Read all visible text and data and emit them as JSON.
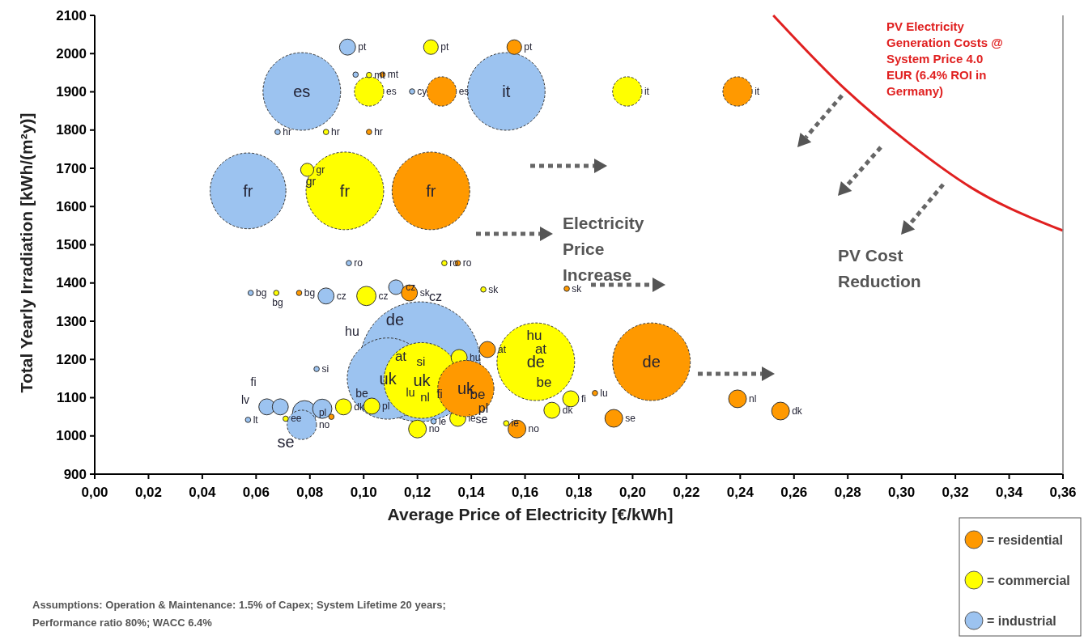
{
  "chart_data": {
    "type": "bubble",
    "xlabel": "Average Price of Electricity [€/kWh]",
    "ylabel": "Total Yearly Irradiation [kWh/(m²y)]",
    "xlim": [
      0,
      0.36
    ],
    "ylim": [
      900,
      2100
    ],
    "xticks": [
      {
        "value": 0,
        "label": "0,00"
      },
      {
        "value": 0.02,
        "label": "0,02"
      },
      {
        "value": 0.04,
        "label": "0,04"
      },
      {
        "value": 0.06,
        "label": "0,06"
      },
      {
        "value": 0.08,
        "label": "0,08"
      },
      {
        "value": 0.1,
        "label": "0,10"
      },
      {
        "value": 0.12,
        "label": "0,12"
      },
      {
        "value": 0.14,
        "label": "0,14"
      },
      {
        "value": 0.16,
        "label": "0,16"
      },
      {
        "value": 0.18,
        "label": "0,18"
      },
      {
        "value": 0.2,
        "label": "0,20"
      },
      {
        "value": 0.22,
        "label": "0,22"
      },
      {
        "value": 0.24,
        "label": "0,24"
      },
      {
        "value": 0.26,
        "label": "0,26"
      },
      {
        "value": 0.28,
        "label": "0,28"
      },
      {
        "value": 0.3,
        "label": "0,30"
      },
      {
        "value": 0.32,
        "label": "0,32"
      },
      {
        "value": 0.34,
        "label": "0,34"
      },
      {
        "value": 0.36,
        "label": "0,36"
      }
    ],
    "yticks": [
      900,
      1000,
      1100,
      1200,
      1300,
      1400,
      1500,
      1600,
      1700,
      1800,
      1900,
      2000,
      2100
    ],
    "grid": false,
    "legend": "bottom right",
    "marker": "circle",
    "series": [
      {
        "name": "= residential",
        "color": "#ff9900",
        "x": [
          0.125,
          0.207,
          0.138,
          0.129,
          0.239,
          0.156,
          0.117,
          0.146,
          0.157,
          0.193,
          0.239,
          0.255,
          0.107,
          0.102,
          0.135,
          0.076,
          0.1755,
          0.186,
          0.088
        ],
        "values": [
          1641,
          1194,
          1124,
          1901,
          1901,
          2017,
          1374,
          1226,
          1018,
          1046,
          1097,
          1065,
          1945,
          1795,
          1452,
          1374,
          1385,
          1112,
          1050
        ],
        "sizes": [
          0.42,
          0.42,
          0.22,
          0.06,
          0.06,
          0.015,
          0.018,
          0.018,
          0.022,
          0.022,
          0.022,
          0.022,
          0.002,
          0.002,
          0.002,
          0.002,
          0.002,
          0.002,
          0.002
        ]
      },
      {
        "name": "= commercial",
        "color": "#ffff00",
        "x": [
          0.093,
          0.164,
          0.1216,
          0.102,
          0.198,
          0.125,
          0.101,
          0.079,
          0.1355,
          0.103,
          0.0925,
          0.12,
          0.135,
          0.17,
          0.177,
          0.102,
          0.086,
          0.13,
          0.0675,
          0.1445,
          0.153,
          0.071
        ],
        "values": [
          1641,
          1194,
          1145,
          1901,
          1901,
          2017,
          1366,
          1696,
          1205,
          1078,
          1076,
          1018,
          1046,
          1067,
          1097,
          1944,
          1795,
          1452,
          1374,
          1383,
          1033,
          1045
        ],
        "sizes": [
          0.42,
          0.42,
          0.4,
          0.06,
          0.06,
          0.015,
          0.026,
          0.012,
          0.018,
          0.018,
          0.018,
          0.022,
          0.018,
          0.018,
          0.018,
          0.002,
          0.002,
          0.002,
          0.002,
          0.002,
          0.002,
          0.002
        ]
      },
      {
        "name": "= industrial",
        "color": "#9cc3f0",
        "x": [
          0.121,
          0.109,
          0.077,
          0.153,
          0.057,
          0.094,
          0.086,
          0.112,
          0.078,
          0.0846,
          0.064,
          0.069,
          0.077,
          0.097,
          0.118,
          0.068,
          0.0945,
          0.058,
          0.0825,
          0.126,
          0.057
        ],
        "values": [
          1194,
          1150,
          1901,
          1901,
          1641,
          2017,
          1366,
          1389,
          1061,
          1071,
          1076,
          1076,
          1029,
          1945,
          1901,
          1795,
          1452,
          1374,
          1175,
          1038,
          1042
        ],
        "sizes": [
          1,
          0.46,
          0.42,
          0.42,
          0.4,
          0.018,
          0.018,
          0.015,
          0.04,
          0.026,
          0.018,
          0.018,
          0.06,
          0.002,
          0.002,
          0.002,
          0.002,
          0.002,
          0.002,
          0.002,
          0.002
        ]
      },
      {
        "type": "line",
        "color": "#e02020",
        "marker": "none",
        "line_style": "solid",
        "x": [
          0.2523,
          0.279,
          0.302,
          0.326,
          0.36
        ],
        "values": [
          2100,
          1907,
          1770,
          1649,
          1537
        ]
      }
    ],
    "annotations": [
      "PV Electricity Generation Costs @ System Price 4.0 EUR (6.4% ROI in Germany)",
      "Electricity Price Increase",
      "PV Cost Reduction",
      "Assumptions: Operation & Maintenance: 1.5% of Capex; System Lifetime 20 years; Performance ratio 80%; WACC 6.4%",
      "hu",
      "hu",
      "at",
      "si",
      "at",
      "be",
      "lu",
      "nl",
      "fi",
      "be",
      "be",
      "pl",
      "se",
      "fi",
      "lv",
      "gr",
      "bg",
      "cz",
      "se",
      {
        "text": "fr",
        "x": 0.125,
        "y": 1641
      },
      {
        "text": "de",
        "x": 0.207,
        "y": 1194
      },
      {
        "text": "uk",
        "x": 0.138,
        "y": 1124
      },
      {
        "text": "es",
        "x": 0.129,
        "y": 1901
      },
      {
        "text": "it",
        "x": 0.239,
        "y": 1901
      },
      {
        "text": "pt",
        "x": 0.156,
        "y": 2017
      },
      {
        "text": "sk",
        "x": 0.117,
        "y": 1374
      },
      {
        "text": "at",
        "x": 0.146,
        "y": 1226
      },
      {
        "text": "no",
        "x": 0.157,
        "y": 1018
      },
      {
        "text": "se",
        "x": 0.193,
        "y": 1046
      },
      {
        "text": "nl",
        "x": 0.239,
        "y": 1097
      },
      {
        "text": "dk",
        "x": 0.255,
        "y": 1065
      },
      {
        "text": "mt",
        "x": 0.107,
        "y": 1945
      },
      {
        "text": "hr",
        "x": 0.102,
        "y": 1795
      },
      {
        "text": "ro",
        "x": 0.135,
        "y": 1452
      },
      {
        "text": "bg",
        "x": 0.076,
        "y": 1374
      },
      {
        "text": "sk",
        "x": 0.1755,
        "y": 1385
      },
      {
        "text": "lu",
        "x": 0.186,
        "y": 1112
      },
      {
        "text": "fr",
        "x": 0.093,
        "y": 1641
      },
      {
        "text": "de",
        "x": 0.164,
        "y": 1194
      },
      {
        "text": "uk",
        "x": 0.1216,
        "y": 1145
      },
      {
        "text": "es",
        "x": 0.102,
        "y": 1901
      },
      {
        "text": "it",
        "x": 0.198,
        "y": 1901
      },
      {
        "text": "pt",
        "x": 0.125,
        "y": 2017
      },
      {
        "text": "cz",
        "x": 0.101,
        "y": 1366
      },
      {
        "text": "gr",
        "x": 0.079,
        "y": 1696
      },
      {
        "text": "hu",
        "x": 0.1355,
        "y": 1205
      },
      {
        "text": "pl",
        "x": 0.103,
        "y": 1078
      },
      {
        "text": "dk",
        "x": 0.0925,
        "y": 1076
      },
      {
        "text": "no",
        "x": 0.12,
        "y": 1018
      },
      {
        "text": "ie",
        "x": 0.135,
        "y": 1046
      },
      {
        "text": "dk",
        "x": 0.17,
        "y": 1067
      },
      {
        "text": "fi",
        "x": 0.177,
        "y": 1097
      },
      {
        "text": "mt",
        "x": 0.102,
        "y": 1944
      },
      {
        "text": "hr",
        "x": 0.086,
        "y": 1795
      },
      {
        "text": "ro",
        "x": 0.13,
        "y": 1452
      },
      {
        "text": "sk",
        "x": 0.1445,
        "y": 1383
      },
      {
        "text": "ie",
        "x": 0.153,
        "y": 1033
      },
      {
        "text": "ee",
        "x": 0.071,
        "y": 1045
      },
      {
        "text": "de",
        "x": 0.121,
        "y": 1194
      },
      {
        "text": "uk",
        "x": 0.109,
        "y": 1150
      },
      {
        "text": "es",
        "x": 0.077,
        "y": 1901
      },
      {
        "text": "it",
        "x": 0.153,
        "y": 1901
      },
      {
        "text": "fr",
        "x": 0.057,
        "y": 1641
      },
      {
        "text": "pt",
        "x": 0.094,
        "y": 2017
      },
      {
        "text": "cz",
        "x": 0.086,
        "y": 1366
      },
      {
        "text": "cz",
        "x": 0.112,
        "y": 1389
      },
      {
        "text": "pl",
        "x": 0.078,
        "y": 1061
      },
      {
        "text": "no",
        "x": 0.077,
        "y": 1029
      },
      {
        "text": "cy",
        "x": 0.118,
        "y": 1901
      },
      {
        "text": "hr",
        "x": 0.068,
        "y": 1795
      },
      {
        "text": "ro",
        "x": 0.0945,
        "y": 1452
      },
      {
        "text": "bg",
        "x": 0.058,
        "y": 1374
      },
      {
        "text": "si",
        "x": 0.0825,
        "y": 1175
      },
      {
        "text": "ie",
        "x": 0.126,
        "y": 1038
      },
      {
        "text": "lt",
        "x": 0.057,
        "y": 1042
      }
    ]
  }
}
